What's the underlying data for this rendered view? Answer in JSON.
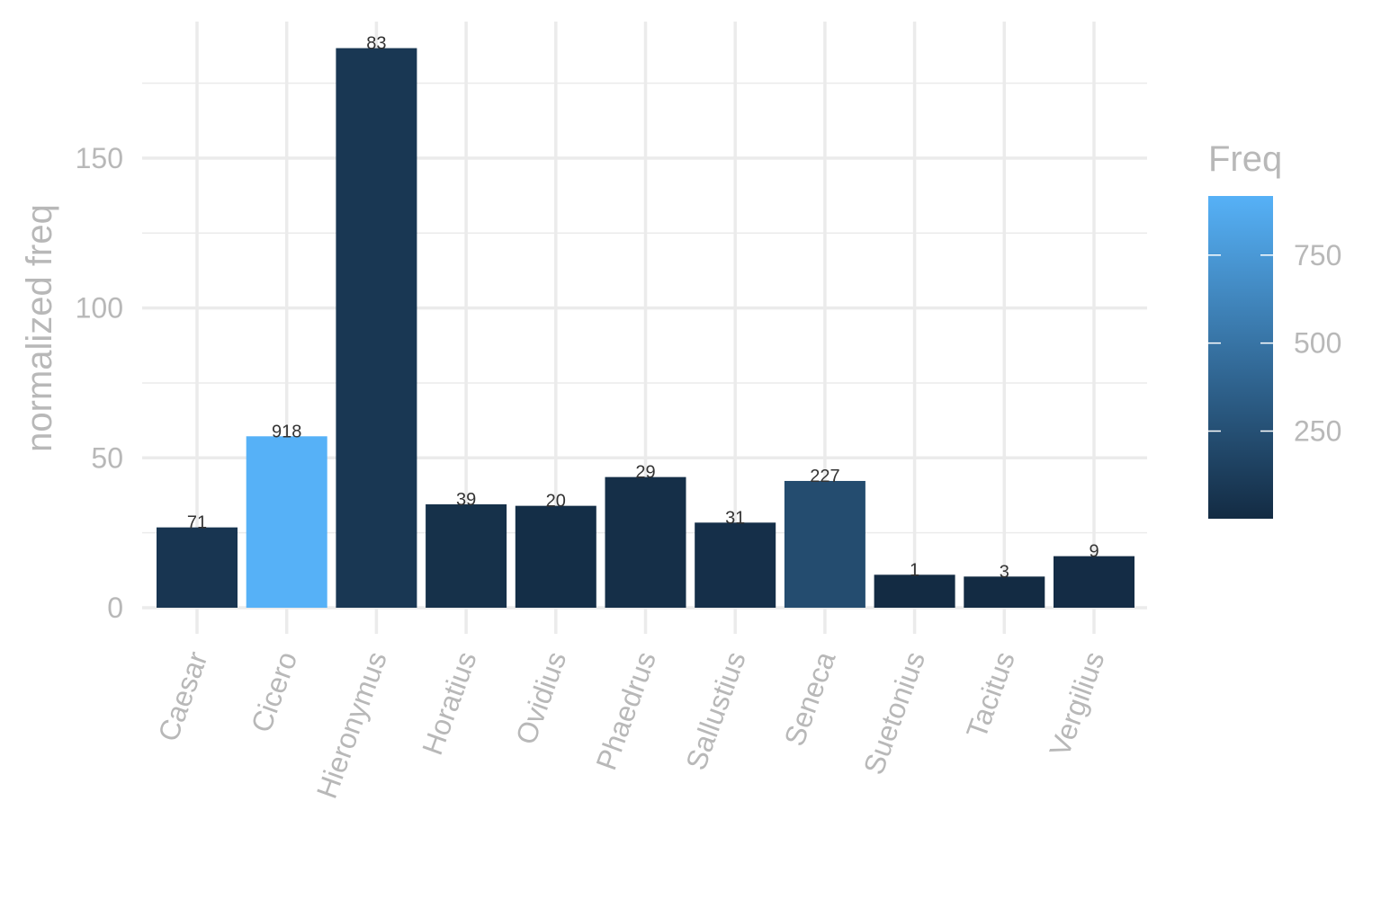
{
  "chart_data": {
    "type": "bar",
    "categories": [
      "Caesar",
      "Cicero",
      "Hieronymus",
      "Horatius",
      "Ovidius",
      "Phaedrus",
      "Sallustius",
      "Seneca",
      "Suetonius",
      "Tacitus",
      "Vergilius"
    ],
    "values": [
      26.8,
      57.2,
      186.7,
      34.5,
      34.0,
      43.6,
      28.4,
      42.3,
      11.0,
      10.4,
      17.2
    ],
    "bar_labels": [
      "71",
      "918",
      "83",
      "39",
      "20",
      "29",
      "31",
      "227",
      "1",
      "3",
      "9"
    ],
    "freq": [
      71,
      918,
      83,
      39,
      20,
      29,
      31,
      227,
      1,
      3,
      9
    ],
    "ylabel": "normalized freq",
    "xlabel": "",
    "yticks": [
      0,
      50,
      100,
      150
    ],
    "ylim": [
      0,
      186.7
    ],
    "grid": true,
    "legend": {
      "title": "Freq",
      "ticks": [
        250,
        500,
        750
      ],
      "range": [
        1,
        918
      ],
      "color_low": "#132b43",
      "color_high": "#56b1f7",
      "position": "right"
    }
  }
}
